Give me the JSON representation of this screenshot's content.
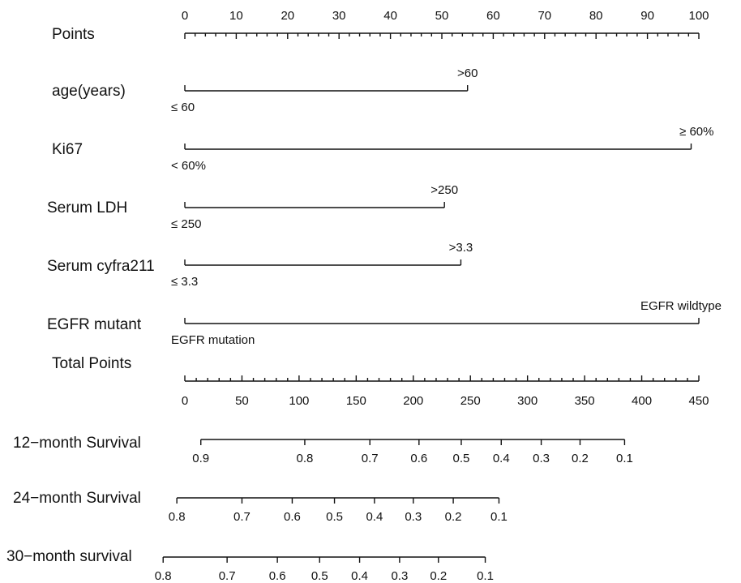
{
  "chart_data": {
    "type": "nomogram",
    "points_scale": {
      "label": "Points",
      "min": 0,
      "max": 100,
      "tick_labels": [
        0,
        10,
        20,
        30,
        40,
        50,
        60,
        70,
        80,
        90,
        100
      ],
      "minor_step": 2
    },
    "variables": [
      {
        "name": "age(years)",
        "low_label": "≤ 60",
        "high_label": ">60",
        "points": 55
      },
      {
        "name": "Ki67",
        "low_label": "< 60%",
        "high_label": "≥ 60%",
        "points": 98.5
      },
      {
        "name": "Serum LDH",
        "low_label": "≤ 250",
        "high_label": ">250",
        "points": 50.5
      },
      {
        "name": "Serum cyfra211",
        "low_label": "≤ 3.3",
        "high_label": ">3.3",
        "points": 53.7
      },
      {
        "name": "EGFR mutant",
        "low_label": "EGFR mutation",
        "high_label": "EGFR  wildtype",
        "points": 100
      }
    ],
    "total_points_scale": {
      "label": "Total Points",
      "min": 0,
      "max": 450,
      "tick_labels": [
        0,
        50,
        100,
        150,
        200,
        250,
        300,
        350,
        400,
        450
      ],
      "minor_step": 10
    },
    "survival_scales": [
      {
        "label": "12−month Survival",
        "line_from_total": 14,
        "line_to_total": 385,
        "ticks": [
          {
            "label": "0.9",
            "total": 14
          },
          {
            "label": "0.8",
            "total": 105
          },
          {
            "label": "0.7",
            "total": 162
          },
          {
            "label": "0.6",
            "total": 205
          },
          {
            "label": "0.5",
            "total": 242
          },
          {
            "label": "0.4",
            "total": 277
          },
          {
            "label": "0.3",
            "total": 312
          },
          {
            "label": "0.2",
            "total": 346
          },
          {
            "label": "0.1",
            "total": 385
          }
        ]
      },
      {
        "label": "24−month Survival",
        "line_from_total": -7,
        "line_to_total": 275,
        "ticks": [
          {
            "label": "0.8",
            "total": -7
          },
          {
            "label": "0.7",
            "total": 50
          },
          {
            "label": "0.6",
            "total": 94
          },
          {
            "label": "0.5",
            "total": 131
          },
          {
            "label": "0.4",
            "total": 166
          },
          {
            "label": "0.3",
            "total": 200
          },
          {
            "label": "0.2",
            "total": 235
          },
          {
            "label": "0.1",
            "total": 275
          }
        ]
      },
      {
        "label": "30−month survival",
        "line_from_total": -19,
        "line_to_total": 263,
        "ticks": [
          {
            "label": "0.8",
            "total": -19
          },
          {
            "label": "0.7",
            "total": 37
          },
          {
            "label": "0.6",
            "total": 81
          },
          {
            "label": "0.5",
            "total": 118
          },
          {
            "label": "0.4",
            "total": 153
          },
          {
            "label": "0.3",
            "total": 188
          },
          {
            "label": "0.2",
            "total": 222
          },
          {
            "label": "0.1",
            "total": 263
          }
        ]
      }
    ]
  }
}
